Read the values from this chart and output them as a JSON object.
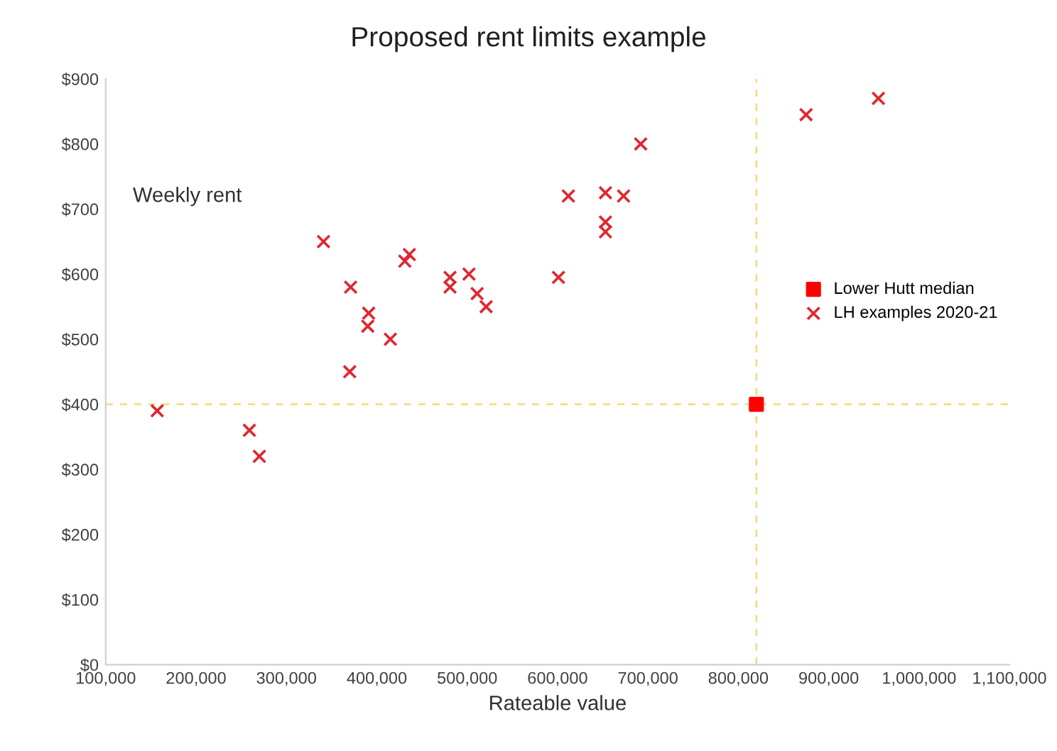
{
  "chart_data": {
    "type": "scatter",
    "title": "Proposed rent limits example",
    "xlabel": "Rateable value",
    "annotations": [
      "Weekly rent"
    ],
    "series": [
      {
        "name": "Lower Hutt median",
        "color": "#ff0000",
        "marker": "square",
        "x": [
          820000
        ],
        "values": [
          400
        ]
      },
      {
        "name": "LH examples 2020-21",
        "color": "#e0262f",
        "marker": "cross",
        "x": [
          157000,
          259000,
          270000,
          341000,
          371000,
          370000,
          391000,
          390000,
          415000,
          431000,
          436000,
          481000,
          481000,
          502000,
          511000,
          521000,
          601000,
          612000,
          653000,
          673000,
          653000,
          653000,
          692000,
          875000,
          955000
        ],
        "values": [
          390,
          360,
          320,
          650,
          580,
          450,
          540,
          520,
          500,
          620,
          630,
          595,
          580,
          600,
          570,
          550,
          595,
          720,
          725,
          720,
          680,
          665,
          800,
          845,
          870
        ]
      }
    ],
    "ref_lines": [
      {
        "axis": "x",
        "value": 820000,
        "color": "#f5d77a",
        "line_style": "dashed"
      },
      {
        "axis": "y",
        "value": 400,
        "color": "#f5d77a",
        "line_style": "dashed"
      }
    ],
    "xlim": [
      100000,
      1100000
    ],
    "xticks": [
      {
        "value": 100000,
        "label": "100,000"
      },
      {
        "value": 200000,
        "label": "200,000"
      },
      {
        "value": 300000,
        "label": "300,000"
      },
      {
        "value": 400000,
        "label": "400,000"
      },
      {
        "value": 500000,
        "label": "500,000"
      },
      {
        "value": 600000,
        "label": "600,000"
      },
      {
        "value": 700000,
        "label": "700,000"
      },
      {
        "value": 800000,
        "label": "800,000"
      },
      {
        "value": 900000,
        "label": "900,000"
      },
      {
        "value": 1000000,
        "label": "1,000,000"
      },
      {
        "value": 1100000,
        "label": "1,100,000"
      }
    ],
    "ylim": [
      0,
      900
    ],
    "yticks": [
      {
        "value": 0,
        "label": "$0"
      },
      {
        "value": 100,
        "label": "$100"
      },
      {
        "value": 200,
        "label": "$200"
      },
      {
        "value": 300,
        "label": "$300"
      },
      {
        "value": 400,
        "label": "$400"
      },
      {
        "value": 500,
        "label": "$500"
      },
      {
        "value": 600,
        "label": "$600"
      },
      {
        "value": 700,
        "label": "$700"
      },
      {
        "value": 800,
        "label": "$800"
      },
      {
        "value": 900,
        "label": "$900"
      }
    ],
    "grid": false,
    "legend": "right"
  }
}
